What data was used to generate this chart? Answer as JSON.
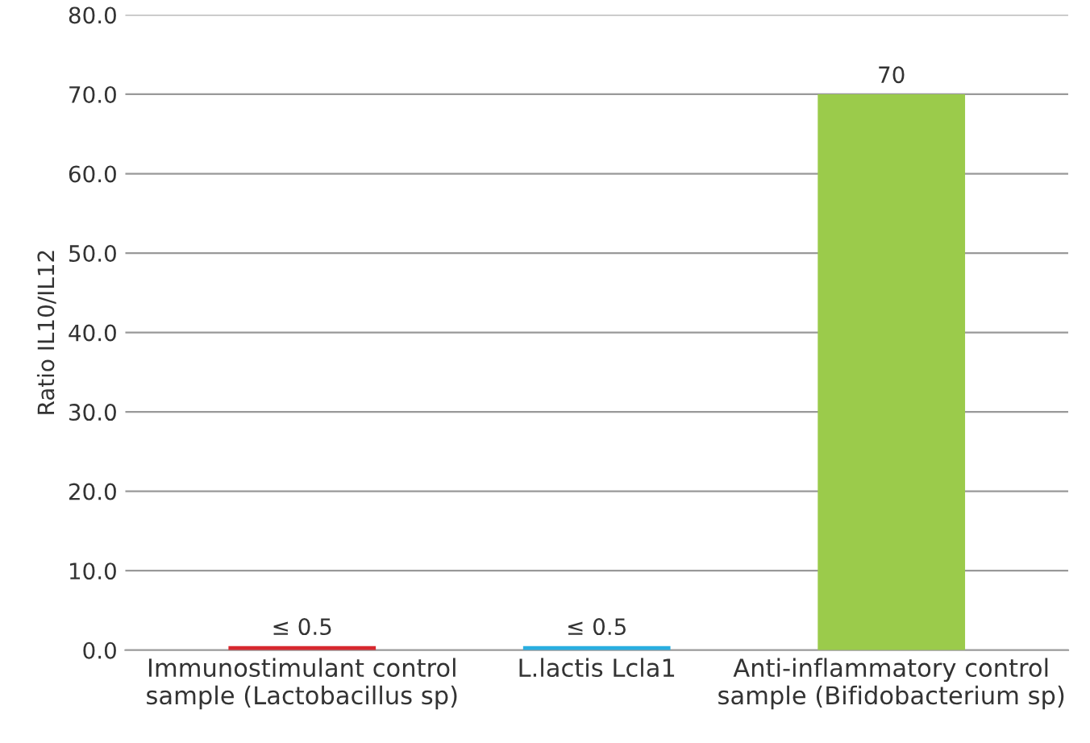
{
  "chart_data": {
    "type": "bar",
    "ylabel": "Ratio IL10/IL12",
    "categories": [
      "Immunostimulant control\nsample (Lactobacillus sp)",
      "L.lactis Lcla1",
      "Anti-inflammatory control\nsample (Bifidobacterium sp)"
    ],
    "values": [
      0.5,
      0.5,
      70
    ],
    "colors": [
      "#d7282f",
      "#29aee0",
      "#9bcb4b"
    ],
    "value_labels": [
      "≤ 0.5",
      "≤ 0.5",
      "70"
    ],
    "ylim": [
      0,
      80
    ],
    "yticks": [
      {
        "value": 0,
        "label": "0.0"
      },
      {
        "value": 10,
        "label": "10.0"
      },
      {
        "value": 20,
        "label": "20.0"
      },
      {
        "value": 30,
        "label": "30.0"
      },
      {
        "value": 40,
        "label": "40.0"
      },
      {
        "value": 50,
        "label": "50.0"
      },
      {
        "value": 60,
        "label": "60.0"
      },
      {
        "value": 70,
        "label": "70.0"
      },
      {
        "value": 80,
        "label": "80.0"
      }
    ],
    "grid": "y",
    "legend": false
  }
}
